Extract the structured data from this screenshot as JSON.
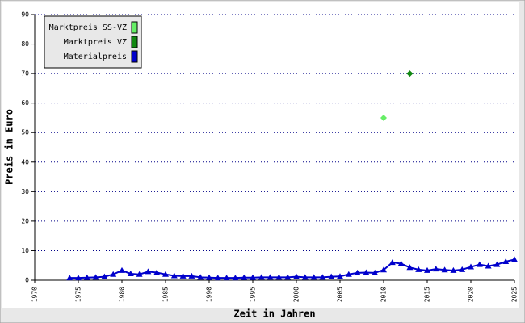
{
  "chart_data": {
    "type": "line",
    "xlabel": "Zeit in Jahren",
    "ylabel": "Preis in Euro",
    "xlim": [
      1970,
      2025
    ],
    "xticks": [
      1970,
      1975,
      1980,
      1985,
      1990,
      1995,
      2000,
      2005,
      2010,
      2015,
      2020,
      2025
    ],
    "ylim": [
      0,
      90
    ],
    "yticks": [
      0,
      10,
      20,
      30,
      40,
      50,
      60,
      70,
      80,
      90
    ],
    "grid": true,
    "legend": "upper-left",
    "series": [
      {
        "name": "Marktpreis SS-VZ",
        "color": "#66ee66",
        "marker": "diamond",
        "x": [
          2010
        ],
        "values": [
          55
        ]
      },
      {
        "name": "Marktpreis VZ",
        "color": "#118811",
        "marker": "diamond",
        "x": [
          2013
        ],
        "values": [
          70
        ]
      },
      {
        "name": "Materialpreis",
        "color": "#0000cc",
        "marker": "triangle",
        "x": [
          1974,
          1975,
          1976,
          1977,
          1978,
          1979,
          1980,
          1981,
          1982,
          1983,
          1984,
          1985,
          1986,
          1987,
          1988,
          1989,
          1990,
          1991,
          1992,
          1993,
          1994,
          1995,
          1996,
          1997,
          1998,
          1999,
          2000,
          2001,
          2002,
          2003,
          2004,
          2005,
          2006,
          2007,
          2008,
          2009,
          2010,
          2011,
          2012,
          2013,
          2014,
          2015,
          2016,
          2017,
          2018,
          2019,
          2020,
          2021,
          2022,
          2023,
          2024,
          2025
        ],
        "values": [
          0.8,
          0.8,
          0.9,
          1.0,
          1.2,
          2.0,
          3.3,
          2.2,
          2.0,
          2.9,
          2.6,
          2.0,
          1.5,
          1.4,
          1.4,
          1.0,
          0.9,
          0.8,
          0.8,
          0.8,
          0.9,
          0.9,
          1.0,
          1.0,
          1.0,
          1.0,
          1.2,
          1.0,
          1.0,
          1.0,
          1.2,
          1.3,
          2.0,
          2.5,
          2.6,
          2.5,
          3.5,
          6.0,
          5.6,
          4.3,
          3.6,
          3.3,
          3.8,
          3.5,
          3.3,
          3.6,
          4.5,
          5.3,
          4.8,
          5.3,
          6.3,
          7.0
        ]
      }
    ]
  }
}
